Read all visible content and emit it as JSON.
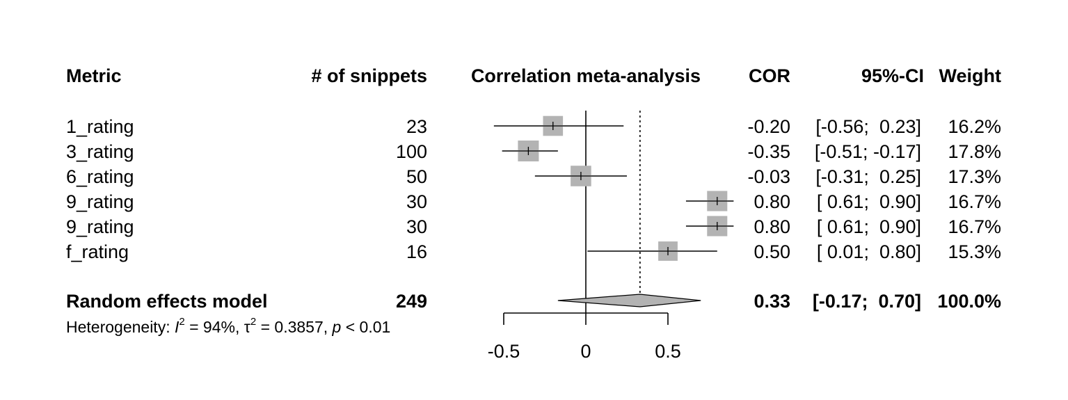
{
  "chart_data": {
    "type": "forest",
    "title": "Correlation meta-analysis",
    "columns": {
      "metric": "Metric",
      "snippets": "# of snippets",
      "cor": "COR",
      "ci": "95%-CI",
      "weight": "Weight"
    },
    "studies": [
      {
        "metric": "1_rating",
        "snippets": "23",
        "cor": -0.2,
        "lower": -0.56,
        "upper": 0.23,
        "cor_text": "-0.20",
        "ci_text": "[-0.56;  0.23]",
        "weight": 16.2,
        "weight_text": "16.2%"
      },
      {
        "metric": "3_rating",
        "snippets": "100",
        "cor": -0.35,
        "lower": -0.51,
        "upper": -0.17,
        "cor_text": "-0.35",
        "ci_text": "[-0.51; -0.17]",
        "weight": 17.8,
        "weight_text": "17.8%"
      },
      {
        "metric": "6_rating",
        "snippets": "50",
        "cor": -0.03,
        "lower": -0.31,
        "upper": 0.25,
        "cor_text": "-0.03",
        "ci_text": "[-0.31;  0.25]",
        "weight": 17.3,
        "weight_text": "17.3%"
      },
      {
        "metric": "9_rating",
        "snippets": "30",
        "cor": 0.8,
        "lower": 0.61,
        "upper": 0.9,
        "cor_text": "0.80",
        "ci_text": "[ 0.61;  0.90]",
        "weight": 16.7,
        "weight_text": "16.7%"
      },
      {
        "metric": "9_rating",
        "snippets": "30",
        "cor": 0.8,
        "lower": 0.61,
        "upper": 0.9,
        "cor_text": "0.80",
        "ci_text": "[ 0.61;  0.90]",
        "weight": 16.7,
        "weight_text": "16.7%"
      },
      {
        "metric": "f_rating",
        "snippets": "16",
        "cor": 0.5,
        "lower": 0.01,
        "upper": 0.8,
        "cor_text": "0.50",
        "ci_text": "[ 0.01;  0.80]",
        "weight": 15.3,
        "weight_text": "15.3%"
      }
    ],
    "summary": {
      "label": "Random effects model",
      "snippets": "249",
      "cor": 0.33,
      "lower": -0.17,
      "upper": 0.7,
      "cor_text": "0.33",
      "ci_text": "[-0.17;  0.70]",
      "weight_text": "100.0%"
    },
    "heterogeneity": {
      "prefix": "Heterogeneity: ",
      "i2_symbol": "I",
      "i2_value": " = 94%, ",
      "tau2_symbol": "τ",
      "tau2_value": " = 0.3857, ",
      "p_symbol": "p",
      "p_value": " < 0.01"
    },
    "xaxis": {
      "range": [
        -0.5,
        0.5
      ],
      "ticks": [
        -0.5,
        0,
        0.5
      ],
      "tick_labels": [
        "-0.5",
        "0",
        "0.5"
      ]
    },
    "reference_line": 0,
    "colors": {
      "box": "#b3b3b3",
      "diamond": "#b3b3b3",
      "line": "#000000"
    }
  }
}
